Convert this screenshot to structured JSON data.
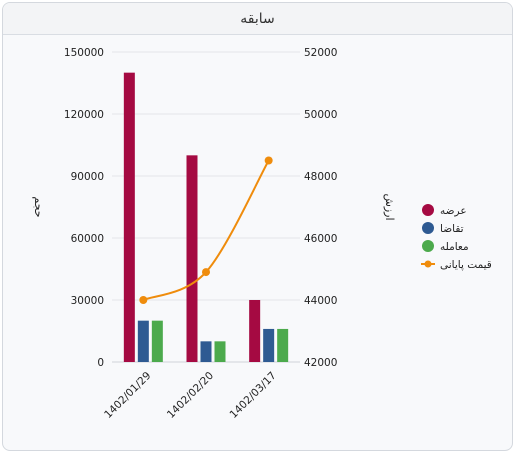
{
  "panel": {
    "title": "سابقه"
  },
  "chart_data": {
    "type": "bar",
    "categories": [
      "1402/01/29",
      "1402/02/20",
      "1402/03/17"
    ],
    "series": [
      {
        "name": "عرضه",
        "type": "bar",
        "axis": "left",
        "color": "#a50a42",
        "values": [
          140000,
          100000,
          30000
        ]
      },
      {
        "name": "تقاضا",
        "type": "bar",
        "axis": "left",
        "color": "#2e5a92",
        "values": [
          20000,
          10000,
          16000
        ]
      },
      {
        "name": "معامله",
        "type": "bar",
        "axis": "left",
        "color": "#4caa4c",
        "values": [
          20000,
          10000,
          16000
        ]
      },
      {
        "name": "قیمت پایانی",
        "type": "line",
        "axis": "right",
        "color": "#ef8c0c",
        "values": [
          44000,
          44900,
          48500
        ]
      }
    ],
    "y_left": {
      "label": "حجم",
      "ticks": [
        0,
        30000,
        60000,
        90000,
        120000,
        150000
      ],
      "range": [
        0,
        150000
      ]
    },
    "y_right": {
      "label": "ارزش",
      "ticks": [
        42000,
        44000,
        46000,
        48000,
        50000,
        52000
      ],
      "range": [
        42000,
        52000
      ]
    },
    "grid": true,
    "legend_position": "right"
  }
}
